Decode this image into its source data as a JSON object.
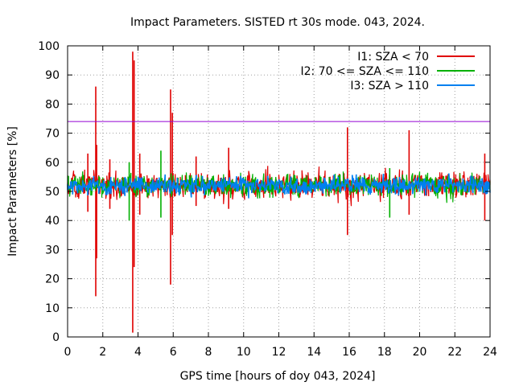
{
  "chart_data": {
    "type": "line",
    "title": "Impact Parameters. SISTED rt 30s mode. 043, 2024.",
    "xlabel": "GPS time [hours of doy 043, 2024]",
    "ylabel": "Impact Parameters [%]",
    "xlim": [
      0,
      24
    ],
    "ylim": [
      0,
      100
    ],
    "xticks": [
      "0",
      "2",
      "4",
      "6",
      "8",
      "10",
      "12",
      "14",
      "16",
      "18",
      "20",
      "22",
      "24"
    ],
    "yticks": [
      "0",
      "10",
      "20",
      "30",
      "40",
      "50",
      "60",
      "70",
      "80",
      "90",
      "100"
    ],
    "grid": true,
    "legend_position": "top-right",
    "threshold": {
      "value": 74,
      "color": "#9400d3"
    },
    "series": [
      {
        "name": "I1: SZA < 70",
        "color": "#e00000",
        "noise": {
          "mean": 52,
          "spread": 6
        },
        "spikes": [
          {
            "x": 1.6,
            "high": 86,
            "low": 14
          },
          {
            "x": 1.65,
            "high": 66,
            "low": 27
          },
          {
            "x": 3.7,
            "high": 98,
            "low": 1.5
          },
          {
            "x": 3.78,
            "high": 95,
            "low": 24
          },
          {
            "x": 5.85,
            "high": 85,
            "low": 18
          },
          {
            "x": 5.95,
            "high": 77,
            "low": 35
          },
          {
            "x": 15.9,
            "high": 72,
            "low": 35
          },
          {
            "x": 19.4,
            "high": 71,
            "low": 42
          },
          {
            "x": 1.15,
            "high": 63,
            "low": 43
          },
          {
            "x": 2.4,
            "high": 61,
            "low": 44
          },
          {
            "x": 4.1,
            "high": 63,
            "low": 42
          },
          {
            "x": 7.3,
            "high": 62,
            "low": 45
          },
          {
            "x": 9.15,
            "high": 65,
            "low": 44
          },
          {
            "x": 23.7,
            "high": 63,
            "low": 40
          }
        ]
      },
      {
        "name": "I2: 70 <= SZA <= 110",
        "color": "#00b000",
        "noise": {
          "mean": 52,
          "spread": 5
        },
        "spikes": [
          {
            "x": 5.3,
            "high": 64,
            "low": 41
          },
          {
            "x": 3.5,
            "high": 60,
            "low": 40
          },
          {
            "x": 18.3,
            "high": 58,
            "low": 41
          }
        ]
      },
      {
        "name": "I3: SZA > 110",
        "color": "#0080f0",
        "noise": {
          "mean": 52,
          "spread": 4
        },
        "spikes": []
      }
    ]
  }
}
